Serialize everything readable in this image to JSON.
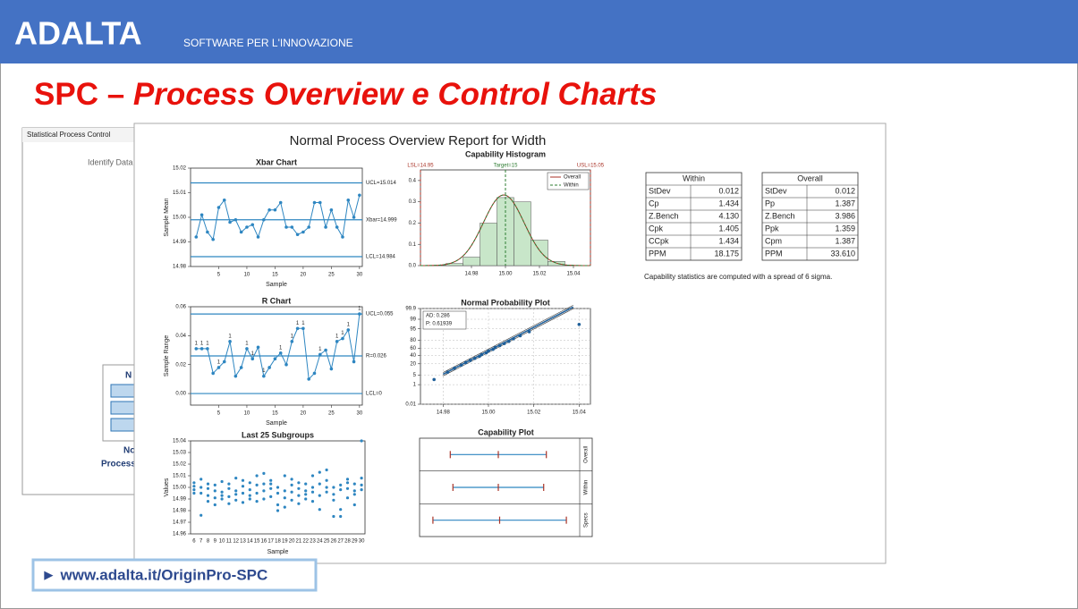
{
  "header": {
    "brand": "ADALTA",
    "tagline": "SOFTWARE PER L'INNOVAZIONE"
  },
  "title": {
    "prefix": "SPC – ",
    "main": "Process Overview e Control Charts"
  },
  "background_window": {
    "title": "Statistical Process Control",
    "prompt": "Identify Data",
    "labels": [
      "N",
      "No",
      "Process"
    ]
  },
  "report": {
    "title": "Normal Process Overview Report for Width",
    "tables": [
      {
        "title": "Within",
        "rows": [
          [
            "StDev",
            "0.012"
          ],
          [
            "Cp",
            "1.434"
          ],
          [
            "Z.Bench",
            "4.130"
          ],
          [
            "Cpk",
            "1.405"
          ],
          [
            "CCpk",
            "1.434"
          ],
          [
            "PPM",
            "18.175"
          ]
        ]
      },
      {
        "title": "Overall",
        "rows": [
          [
            "StDev",
            "0.012"
          ],
          [
            "Pp",
            "1.387"
          ],
          [
            "Z.Bench",
            "3.986"
          ],
          [
            "Ppk",
            "1.359"
          ],
          [
            "Cpm",
            "1.387"
          ],
          [
            "PPM",
            "33.610"
          ]
        ]
      }
    ],
    "note": "Capability statistics are computed with a spread of 6 sigma."
  },
  "chart_data": [
    {
      "type": "line",
      "title": "Xbar Chart",
      "x_label": "Sample",
      "y_label": "Sample Mean",
      "color": "#2e86c1",
      "x": [
        1,
        2,
        3,
        4,
        5,
        6,
        7,
        8,
        9,
        10,
        11,
        12,
        13,
        14,
        15,
        16,
        17,
        18,
        19,
        20,
        21,
        22,
        23,
        24,
        25,
        26,
        27,
        28,
        29,
        30
      ],
      "values": [
        14.992,
        15.001,
        14.994,
        14.991,
        15.004,
        15.007,
        14.998,
        14.999,
        14.994,
        14.996,
        14.997,
        14.992,
        14.999,
        15.003,
        15.003,
        15.006,
        14.996,
        14.996,
        14.993,
        14.994,
        14.996,
        15.006,
        15.006,
        14.996,
        15.003,
        14.996,
        14.992,
        15.007,
        15.0,
        15.009
      ],
      "xlim": [
        0,
        30.5
      ],
      "xticks": [
        5,
        10,
        15,
        20,
        25,
        30
      ],
      "ylim": [
        14.98,
        15.02
      ],
      "yticks": [
        14.98,
        14.99,
        {
          "value": 15,
          "label": "15.00"
        },
        15.01,
        15.02
      ],
      "reference_lines": [
        {
          "value": 15.014,
          "label": "UCL=15.014"
        },
        {
          "value": 14.999,
          "label": "Xbar=14.999"
        },
        {
          "value": 14.984,
          "label": "LCL=14.984"
        }
      ]
    },
    {
      "type": "line",
      "title": "R Chart",
      "x_label": "Sample",
      "y_label": "Sample Range",
      "color": "#2e86c1",
      "x": [
        1,
        2,
        3,
        4,
        5,
        6,
        7,
        8,
        9,
        10,
        11,
        12,
        13,
        14,
        15,
        16,
        17,
        18,
        19,
        20,
        21,
        22,
        23,
        24,
        25,
        26,
        27,
        28,
        29,
        30
      ],
      "values": [
        0.031,
        0.031,
        0.031,
        0.014,
        0.018,
        0.022,
        0.036,
        0.012,
        0.018,
        0.031,
        0.024,
        0.032,
        0.012,
        0.018,
        0.024,
        0.028,
        0.02,
        0.036,
        0.045,
        0.045,
        0.01,
        0.014,
        0.027,
        0.03,
        0.017,
        0.036,
        0.038,
        0.044,
        0.022,
        0.055
      ],
      "test_labels": [
        "1",
        "1",
        "1",
        null,
        "1",
        null,
        "1",
        null,
        null,
        "1",
        "1",
        null,
        "1",
        null,
        null,
        "1",
        null,
        "1",
        "1",
        "1",
        null,
        null,
        "1",
        null,
        null,
        "1",
        "1",
        "1",
        null,
        "1"
      ],
      "xlim": [
        0,
        30.5
      ],
      "xticks": [
        5,
        10,
        15,
        20,
        25,
        30
      ],
      "ylim": [
        -0.008,
        0.06
      ],
      "yticks": [
        {
          "value": 0,
          "label": "0.00"
        },
        0.02,
        0.04,
        0.06
      ],
      "reference_lines": [
        {
          "value": 0.055,
          "label": "UCL=0.055"
        },
        {
          "value": 0.026,
          "label": "R=0.026"
        },
        {
          "value": 0,
          "label": "LCL=0"
        }
      ]
    },
    {
      "type": "scatter",
      "title": "Last 25 Subgroups",
      "x_label": "Sample",
      "y_label": "Values",
      "color": "#2e86c1",
      "categories": [
        6,
        7,
        8,
        9,
        10,
        11,
        12,
        13,
        14,
        15,
        16,
        17,
        18,
        19,
        20,
        21,
        22,
        23,
        24,
        25,
        26,
        27,
        28,
        29,
        30
      ],
      "values": [
        [
          15.004,
          14.998,
          15.001,
          14.995
        ],
        [
          15.007,
          14.995,
          14.976,
          15.0
        ],
        [
          14.999,
          14.993,
          14.988,
          15.003
        ],
        [
          15.002,
          14.997,
          14.991,
          14.985
        ],
        [
          14.996,
          14.99,
          15.005,
          14.993
        ],
        [
          14.992,
          14.986,
          14.999,
          15.003
        ],
        [
          15.008,
          14.994,
          14.989,
          14.997
        ],
        [
          15.001,
          14.987,
          14.995,
          15.006
        ],
        [
          14.998,
          14.99,
          15.004,
          14.993
        ],
        [
          15.01,
          14.995,
          14.988,
          15.002
        ],
        [
          15.012,
          15.003,
          14.997,
          14.99
        ],
        [
          15.006,
          14.999,
          14.992,
          15.003
        ],
        [
          14.995,
          14.985,
          14.98,
          15.0
        ],
        [
          15.01,
          14.991,
          14.983,
          14.997
        ],
        [
          15.007,
          14.996,
          14.989,
          15.002
        ],
        [
          14.999,
          14.993,
          14.986,
          15.004
        ],
        [
          15.003,
          14.997,
          14.99,
          14.994
        ],
        [
          15.01,
          15.0,
          14.996,
          14.988
        ],
        [
          15.013,
          14.993,
          14.981,
          15.003
        ],
        [
          15.015,
          15.006,
          14.996,
          15.0
        ],
        [
          15.0,
          14.994,
          14.975,
          14.989
        ],
        [
          15.002,
          14.998,
          14.981,
          14.975
        ],
        [
          15.007,
          14.999,
          14.991,
          15.004
        ],
        [
          15.003,
          14.997,
          14.985,
          14.994
        ],
        [
          15.04,
          15.002,
          14.998,
          15.008
        ]
      ],
      "ylim": [
        14.96,
        15.04
      ],
      "yticks": [
        14.96,
        14.97,
        14.98,
        14.99,
        {
          "value": 15,
          "label": "15.00"
        },
        15.01,
        15.02,
        15.03,
        15.04
      ]
    },
    {
      "type": "histogram",
      "title": "Capability Histogram",
      "color": "#c8e6c9",
      "bins": [
        14.965,
        14.975,
        14.985,
        14.995,
        15.005,
        15.015,
        15.025,
        15.035
      ],
      "values": [
        0.01,
        0.04,
        0.2,
        0.32,
        0.3,
        0.12,
        0.02
      ],
      "xlim": [
        14.95,
        15.05
      ],
      "xticks": [
        14.98,
        {
          "value": 15,
          "label": "15.00"
        },
        15.02,
        15.04
      ],
      "ylim": [
        0,
        0.45
      ],
      "yticks": [
        {
          "value": 0,
          "label": "0.0"
        },
        0.1,
        0.2,
        0.3,
        0.4
      ],
      "spec_limits": [
        {
          "value": 14.95,
          "label": "LSL=14.95",
          "color": "#a93226"
        },
        {
          "value": 15,
          "label": "Target=15",
          "color": "#2e7d32"
        },
        {
          "value": 15.05,
          "label": "USL=15.05",
          "color": "#a93226"
        }
      ],
      "curves": [
        {
          "name": "Overall",
          "color": "#a93226",
          "mean": 14.999,
          "sd": 0.012
        },
        {
          "name": "Within",
          "color": "#2e7d32",
          "mean": 14.999,
          "sd": 0.012
        }
      ]
    },
    {
      "type": "probability",
      "title": "Normal Probability Plot",
      "color": "#1f5f99",
      "x": [
        14.976,
        14.982,
        14.985,
        14.988,
        14.99,
        14.992,
        14.994,
        14.996,
        14.997,
        14.999,
        15.0,
        15.002,
        15.003,
        15.005,
        15.007,
        15.009,
        15.011,
        15.014,
        15.018,
        15.04
      ],
      "values": [
        2.5,
        7.5,
        12.5,
        17.5,
        22.5,
        27.5,
        32.5,
        37.5,
        42.5,
        47.5,
        52.5,
        57.5,
        62.5,
        67.5,
        72.5,
        77.5,
        82.5,
        87.5,
        92.5,
        97.5
      ],
      "fit": {
        "mean": 14.999,
        "sd": 0.012
      },
      "annotations": [
        "AD: 0.286",
        "P: 0.61939"
      ],
      "xlim": [
        14.97,
        15.045
      ],
      "xticks": [
        14.98,
        {
          "value": 15,
          "label": "15.00"
        },
        15.02,
        15.04
      ],
      "ylim": [
        0.01,
        99.9
      ],
      "yticks": [
        0.01,
        1,
        5,
        20,
        40,
        60,
        80,
        95,
        99,
        99.9
      ]
    },
    {
      "type": "capability",
      "title": "Capability Plot",
      "color": "#2e86c1",
      "rows": [
        {
          "name": "Overall",
          "values": [
            14.963,
            14.999,
            15.035
          ]
        },
        {
          "name": "Within",
          "values": [
            14.965,
            14.999,
            15.033
          ]
        },
        {
          "name": "Specs",
          "values": [
            14.95,
            15,
            15.05
          ]
        }
      ],
      "xlim": [
        14.94,
        15.06
      ]
    }
  ],
  "link": "► www.adalta.it/OriginPro-SPC"
}
